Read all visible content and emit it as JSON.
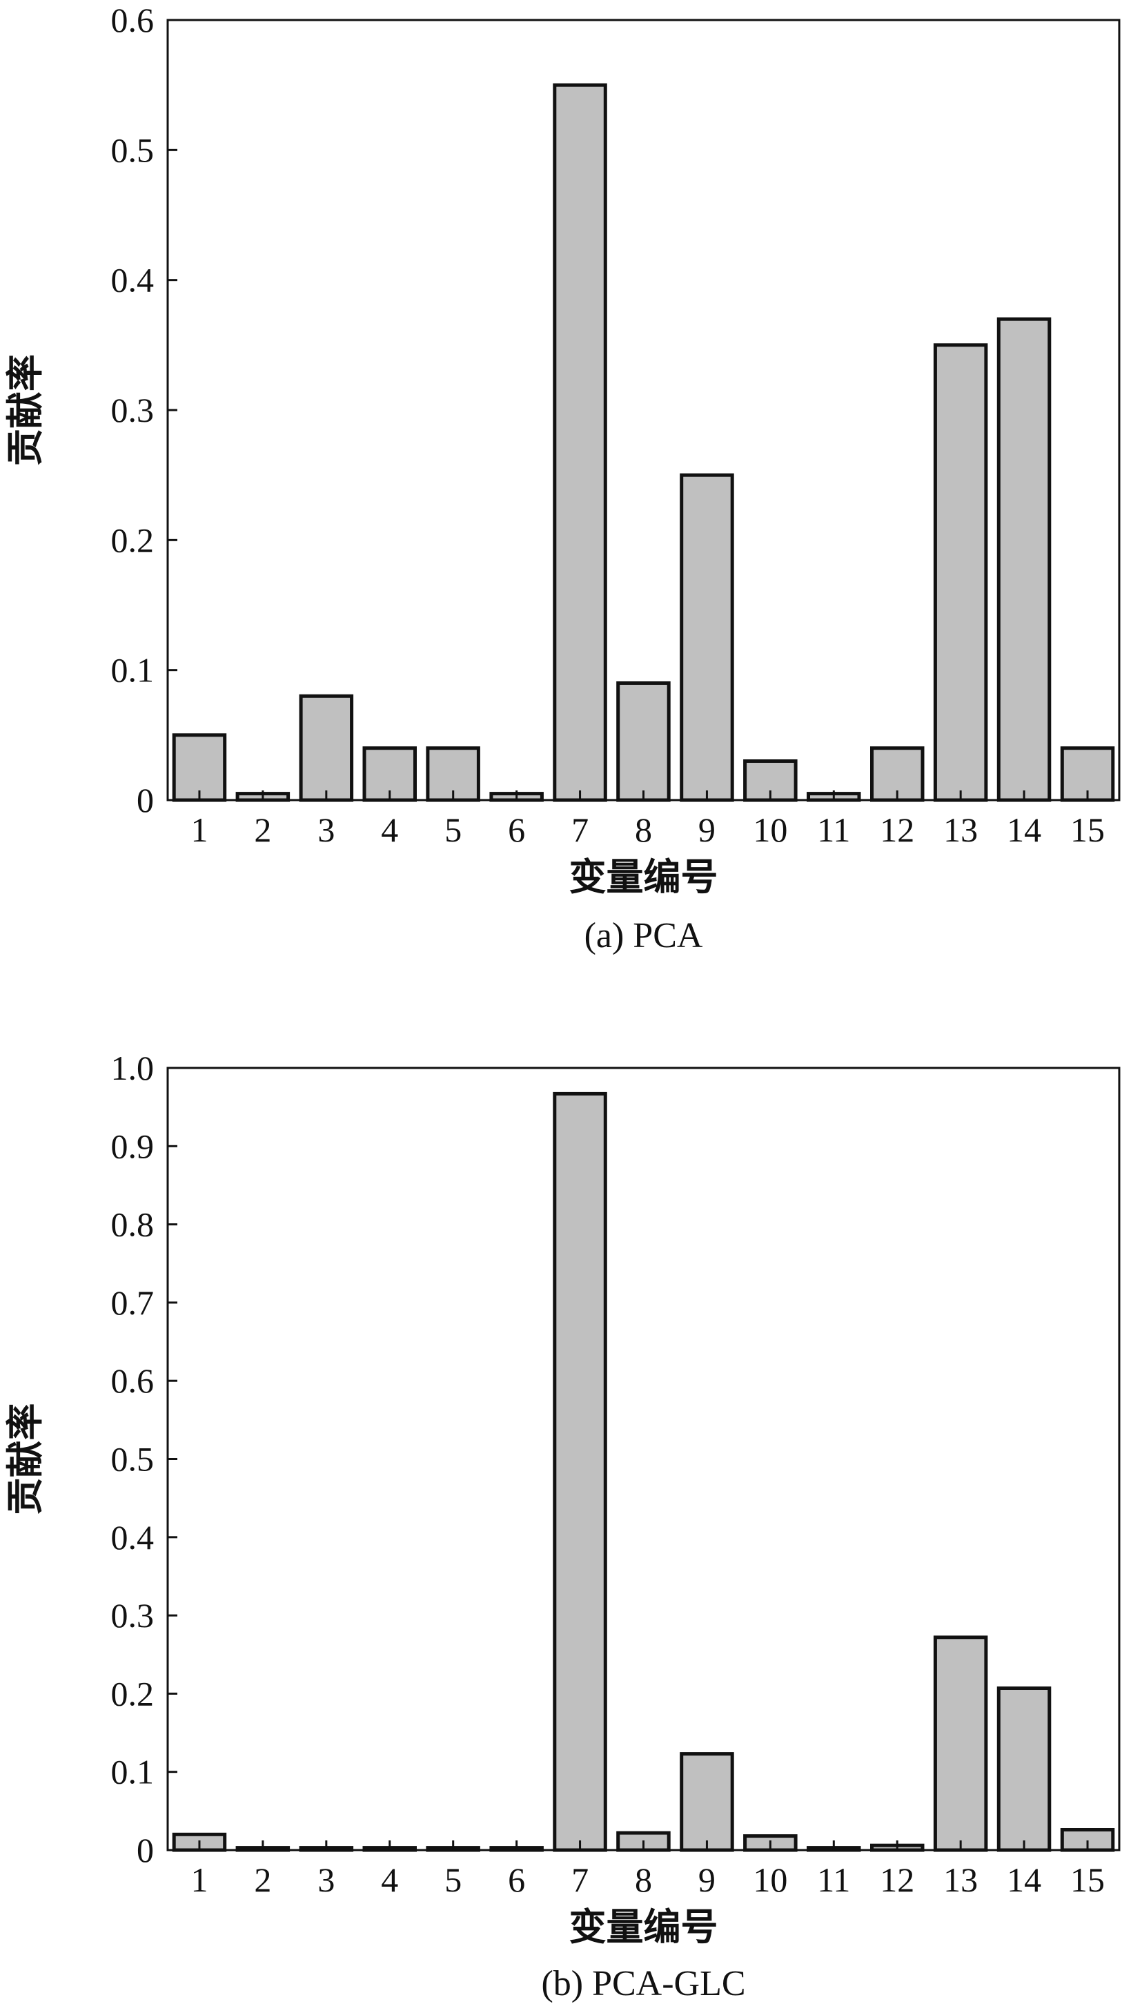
{
  "chart_data": [
    {
      "type": "bar",
      "caption": "(a) PCA",
      "xlabel": "变量编号",
      "ylabel": "贡献率",
      "ylim": [
        0,
        0.6
      ],
      "yticks": [
        "0",
        "0.1",
        "0.2",
        "0.3",
        "0.4",
        "0.5",
        "0.6"
      ],
      "categories": [
        "1",
        "2",
        "3",
        "4",
        "5",
        "6",
        "7",
        "8",
        "9",
        "10",
        "11",
        "12",
        "13",
        "14",
        "15"
      ],
      "values": [
        0.05,
        0.005,
        0.08,
        0.04,
        0.04,
        0.005,
        0.55,
        0.09,
        0.25,
        0.03,
        0.005,
        0.04,
        0.35,
        0.37,
        0.04
      ],
      "bar_color": "#c0c0c0",
      "grid": false
    },
    {
      "type": "bar",
      "caption": "(b) PCA-GLC",
      "xlabel": "变量编号",
      "ylabel": "贡献率",
      "ylim": [
        0,
        1.0
      ],
      "yticks": [
        "0",
        "0.1",
        "0.2",
        "0.3",
        "0.4",
        "0.5",
        "0.6",
        "0.7",
        "0.8",
        "0.9",
        "1.0"
      ],
      "categories": [
        "1",
        "2",
        "3",
        "4",
        "5",
        "6",
        "7",
        "8",
        "9",
        "10",
        "11",
        "12",
        "13",
        "14",
        "15"
      ],
      "values": [
        0.02,
        0.003,
        0.003,
        0.003,
        0.003,
        0.003,
        0.967,
        0.022,
        0.123,
        0.018,
        0.003,
        0.006,
        0.272,
        0.207,
        0.026
      ],
      "bar_color": "#c0c0c0",
      "grid": false
    }
  ]
}
